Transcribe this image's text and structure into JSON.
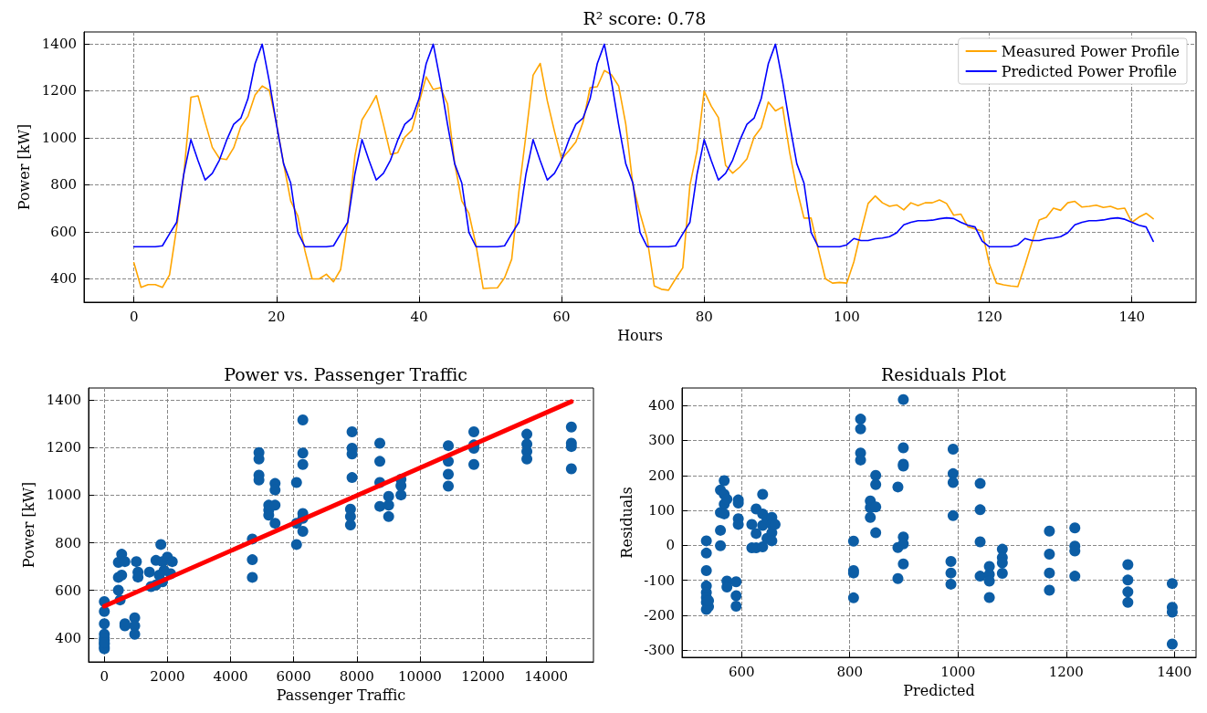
{
  "chart_data": [
    {
      "type": "line",
      "title": "R² score: 0.78",
      "xlabel": "Hours",
      "ylabel": "Power [kW]",
      "x": [
        0,
        1,
        2,
        3,
        4,
        5,
        6,
        7,
        8,
        9,
        10,
        11,
        12,
        13,
        14,
        15,
        16,
        17,
        18,
        19,
        20,
        21,
        22,
        23,
        24,
        25,
        26,
        27,
        28,
        29,
        30,
        31,
        32,
        33,
        34,
        35,
        36,
        37,
        38,
        39,
        40,
        41,
        42,
        43,
        44,
        45,
        46,
        47,
        48,
        49,
        50,
        51,
        52,
        53,
        54,
        55,
        56,
        57,
        58,
        59,
        60,
        61,
        62,
        63,
        64,
        65,
        66,
        67,
        68,
        69,
        70,
        71,
        72,
        73,
        74,
        75,
        76,
        77,
        78,
        79,
        80,
        81,
        82,
        83,
        84,
        85,
        86,
        87,
        88,
        89,
        90,
        91,
        92,
        93,
        94,
        95,
        96,
        97,
        98,
        99,
        100,
        101,
        102,
        103,
        104,
        105,
        106,
        107,
        108,
        109,
        110,
        111,
        112,
        113,
        114,
        115,
        116,
        117,
        118,
        119,
        120,
        121,
        122,
        123,
        124,
        125,
        126,
        127,
        128,
        129,
        130,
        131,
        132,
        133,
        134,
        135,
        136,
        137,
        138,
        139,
        140,
        141,
        142,
        143
      ],
      "series": [
        {
          "name": "Measured Power Profile",
          "color": "#ffa500",
          "values": [
            468,
            363,
            375,
            375,
            363,
            416,
            617,
            844,
            1172,
            1178,
            1065,
            959,
            912,
            907,
            957,
            1047,
            1091,
            1182,
            1220,
            1202,
            1061,
            890,
            731,
            667,
            518,
            399,
            399,
            419,
            387,
            439,
            640,
            921,
            1076,
            1125,
            1179,
            1057,
            929,
            936,
            1002,
            1032,
            1149,
            1259,
            1205,
            1213,
            1144,
            890,
            731,
            678,
            541,
            358,
            360,
            361,
            404,
            483,
            769,
            1012,
            1266,
            1316,
            1156,
            1027,
            909,
            944,
            982,
            1065,
            1213,
            1217,
            1286,
            1268,
            1220,
            1058,
            799,
            678,
            571,
            369,
            355,
            351,
            400,
            446,
            798,
            944,
            1198,
            1134,
            1085,
            883,
            849,
            875,
            910,
            1002,
            1043,
            1152,
            1114,
            1131,
            936,
            781,
            658,
            658,
            525,
            400,
            381,
            384,
            381,
            472,
            601,
            720,
            752,
            723,
            708,
            714,
            693,
            723,
            711,
            723,
            723,
            735,
            720,
            670,
            675,
            621,
            612,
            602,
            462,
            381,
            374,
            369,
            366,
            457,
            556,
            650,
            661,
            700,
            691,
            723,
            729,
            705,
            708,
            713,
            703,
            708,
            696,
            700,
            640,
            662,
            678,
            655
          ]
        },
        {
          "name": "Predicted Power Profile",
          "color": "#0000ff",
          "values": [
            536,
            536,
            536,
            536,
            540,
            591,
            640,
            845,
            992,
            902,
            820,
            848,
            905,
            989,
            1057,
            1083,
            1166,
            1315,
            1398,
            1239,
            1056,
            889,
            807,
            597,
            536,
            536,
            536,
            536,
            540,
            591,
            640,
            845,
            992,
            902,
            820,
            848,
            905,
            989,
            1057,
            1083,
            1166,
            1315,
            1398,
            1239,
            1056,
            889,
            807,
            597,
            536,
            536,
            536,
            536,
            540,
            591,
            640,
            845,
            992,
            902,
            820,
            848,
            905,
            989,
            1057,
            1083,
            1166,
            1315,
            1398,
            1239,
            1056,
            889,
            807,
            597,
            536,
            536,
            536,
            536,
            540,
            591,
            640,
            845,
            992,
            902,
            820,
            848,
            905,
            989,
            1057,
            1083,
            1166,
            1315,
            1398,
            1239,
            1056,
            889,
            807,
            597,
            536,
            536,
            536,
            536,
            544,
            571,
            562,
            562,
            570,
            573,
            579,
            595,
            629,
            640,
            647,
            647,
            649,
            655,
            659,
            656,
            640,
            627,
            620,
            560,
            536,
            536,
            536,
            536,
            544,
            571,
            562,
            562,
            570,
            573,
            579,
            595,
            629,
            640,
            647,
            647,
            650,
            656,
            659,
            653,
            640,
            627,
            620,
            559
          ]
        }
      ],
      "xlim": [
        -7,
        149
      ],
      "xticks": [
        0,
        20,
        40,
        60,
        80,
        100,
        120,
        140
      ],
      "ylim": [
        300,
        1450
      ],
      "yticks": [
        400,
        600,
        800,
        1000,
        1200,
        1400
      ],
      "grid": true,
      "legend": "top right"
    },
    {
      "type": "scatter",
      "title": "Power vs. Passenger Traffic",
      "xlabel": "Passenger Traffic",
      "ylabel": "Power [kW]",
      "series": [
        {
          "color": "#0c5da5",
          "marker": "circle",
          "x": [
            0,
            0,
            0,
            0,
            0,
            0,
            0,
            0,
            0,
            0,
            445,
            549,
            652,
            445,
            549,
            445,
            500,
            652,
            652,
            963,
            963,
            963,
            1015,
            1066,
            1066,
            1429,
            1636,
            1791,
            1843,
            1998,
            2153,
            1480,
            1636,
            1843,
            2101,
            1894,
            1739,
            4690,
            4690,
            4690,
            4900,
            4900,
            4900,
            4900,
            5210,
            5210,
            5210,
            5410,
            5410,
            5410,
            5410,
            6090,
            6090,
            6090,
            6290,
            6290,
            6290,
            6290,
            6290,
            6290,
            7800,
            7800,
            7800,
            7850,
            7850,
            7850,
            7850,
            8730,
            8730,
            8730,
            8730,
            9010,
            9010,
            9010,
            9400,
            9400,
            9400,
            10900,
            10900,
            10900,
            10900,
            11710,
            11710,
            11710,
            11710,
            13390,
            13390,
            13390,
            13390,
            14800,
            14800,
            14800,
            14800
          ],
          "values": [
            553,
            512,
            460,
            416,
            390,
            375,
            362,
            355,
            400,
            380,
            718,
            752,
            721,
            655,
            664,
            601,
            560,
            460,
            451,
            485,
            451,
            416,
            721,
            677,
            656,
            677,
            726,
            793,
            721,
            740,
            721,
            616,
            623,
            636,
            670,
            684,
            664,
            816,
            729,
            655,
            1179,
            1152,
            1084,
            1064,
            958,
            937,
            916,
            1049,
            1022,
            958,
            882,
            1053,
            882,
            793,
            1316,
            1177,
            1129,
            923,
            903,
            848,
            941,
            910,
            875,
            1266,
            1197,
            1173,
            1074,
            1218,
            1142,
            1053,
            953,
            995,
            958,
            910,
            1067,
            1040,
            1001,
            1208,
            1142,
            1088,
            1038,
            1266,
            1211,
            1197,
            1129,
            1256,
            1214,
            1184,
            1152,
            1286,
            1218,
            1204,
            1111
          ]
        },
        {
          "type": "line",
          "color": "#ff0000",
          "x": [
            0,
            14800
          ],
          "values": [
            534,
            1393
          ]
        }
      ],
      "xlim": [
        -500,
        15500
      ],
      "xticks": [
        0,
        2000,
        4000,
        6000,
        8000,
        10000,
        12000,
        14000
      ],
      "ylim": [
        300,
        1450
      ],
      "yticks": [
        400,
        600,
        800,
        1000,
        1200,
        1400
      ],
      "grid": true
    },
    {
      "type": "scatter",
      "title": "Residuals Plot",
      "xlabel": "Predicted",
      "ylabel": "Residuals",
      "series": [
        {
          "color": "#0c5da5",
          "marker": "circle",
          "x": [
            535,
            535,
            535,
            535,
            535,
            535,
            535,
            535,
            539,
            539,
            561,
            561,
            561,
            561,
            568,
            568,
            568,
            568,
            573,
            573,
            573,
            590,
            590,
            590,
            594,
            594,
            594,
            594,
            619,
            619,
            627,
            627,
            627,
            639,
            639,
            639,
            639,
            647,
            647,
            656,
            656,
            656,
            656,
            662,
            807,
            807,
            807,
            807,
            820,
            820,
            820,
            820,
            838,
            838,
            838,
            848,
            848,
            848,
            848,
            889,
            889,
            889,
            899,
            899,
            899,
            899,
            899,
            899,
            899,
            987,
            987,
            987,
            991,
            991,
            991,
            991,
            1041,
            1041,
            1041,
            1041,
            1058,
            1058,
            1058,
            1058,
            1082,
            1082,
            1082,
            1082,
            1169,
            1169,
            1169,
            1169,
            1216,
            1216,
            1216,
            1216,
            1314,
            1314,
            1314,
            1314,
            1396,
            1396,
            1396,
            1396
          ],
          "values": [
            13,
            -22,
            -72,
            -116,
            -135,
            -149,
            -163,
            -183,
            -175,
            -158,
            158,
            94,
            43,
            -1,
            185,
            146,
            118,
            90,
            132,
            -102,
            -119,
            -104,
            -144,
            -174,
            130,
            121,
            76,
            60,
            60,
            -7,
            104,
            34,
            -7,
            146,
            90,
            57,
            -4,
            76,
            20,
            80,
            60,
            36,
            13,
            60,
            12,
            -72,
            -79,
            -150,
            361,
            333,
            264,
            244,
            127,
            108,
            80,
            200,
            174,
            110,
            36,
            167,
            -6,
            -95,
            417,
            279,
            232,
            227,
            24,
            4,
            -53,
            -46,
            -79,
            -111,
            275,
            205,
            180,
            85,
            177,
            102,
            10,
            -88,
            -60,
            -83,
            -102,
            -149,
            -11,
            -35,
            -50,
            -80,
            41,
            -25,
            -79,
            -128,
            50,
            -2,
            -16,
            -88,
            -55,
            -99,
            -133,
            -163,
            -109,
            -177,
            -191,
            -282
          ]
        }
      ],
      "xlim": [
        490,
        1440
      ],
      "xticks": [
        600,
        800,
        1000,
        1200,
        1400
      ],
      "ylim": [
        -320,
        450
      ],
      "yticks": [
        -300,
        -200,
        -100,
        0,
        100,
        200,
        300,
        400
      ],
      "grid": true
    }
  ]
}
